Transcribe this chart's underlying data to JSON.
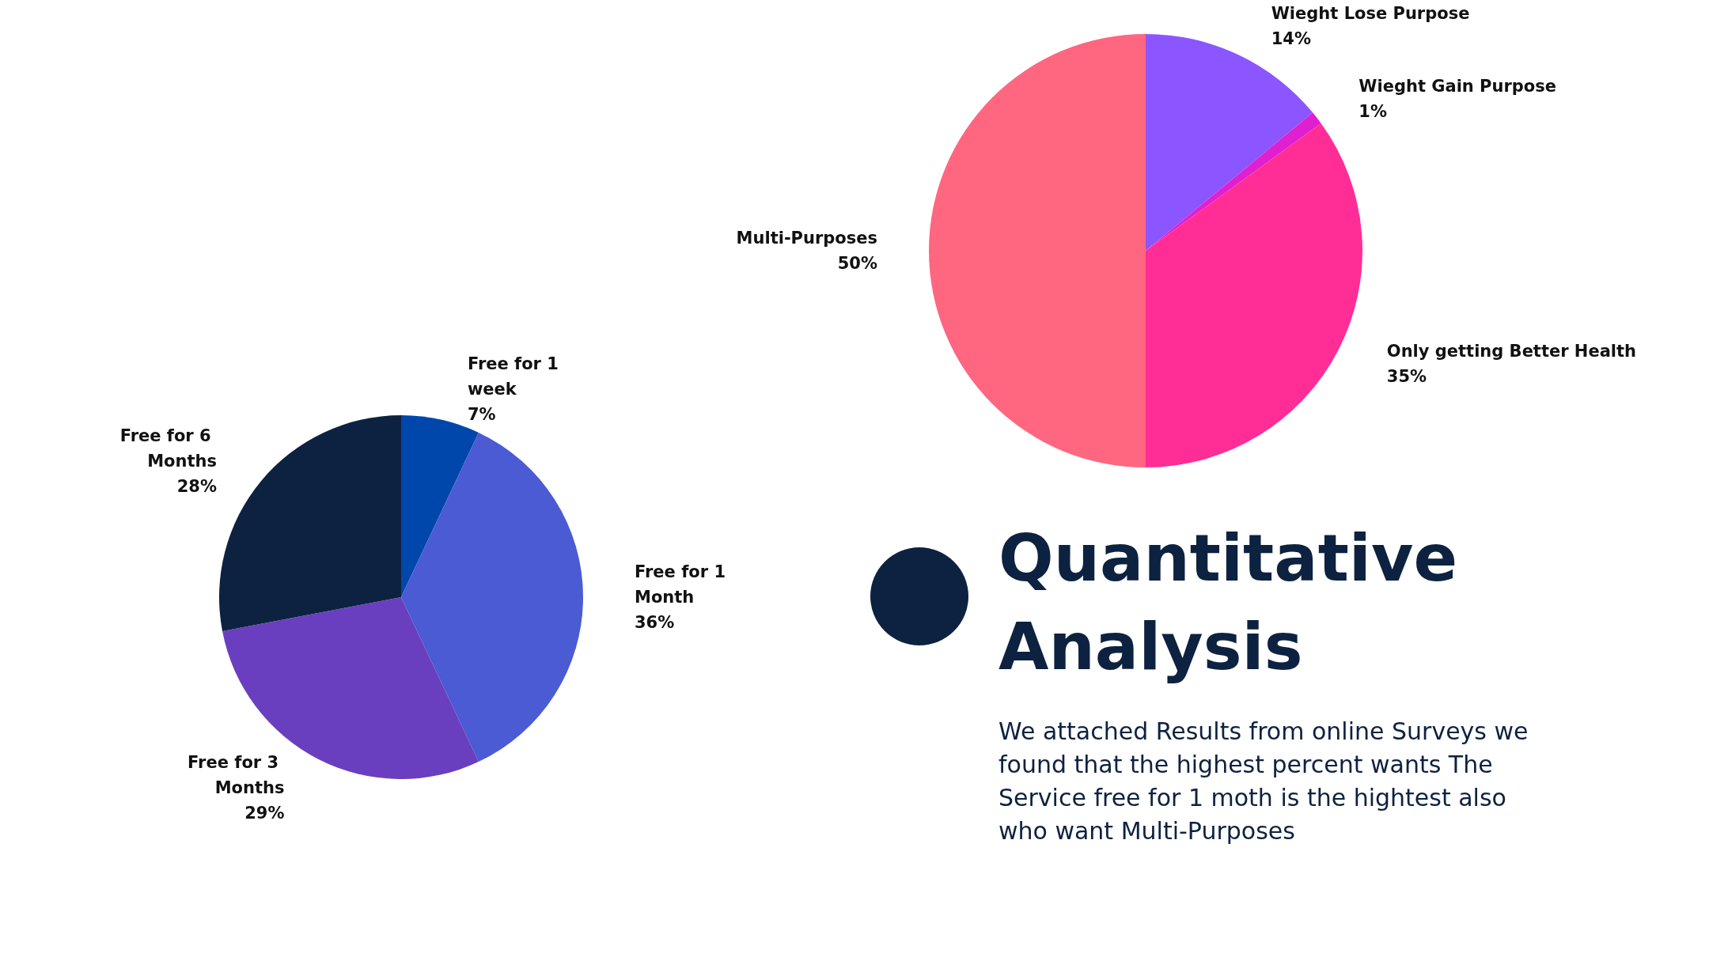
{
  "chart_data": [
    {
      "type": "pie",
      "categories": [
        "Wieght Lose Purpose",
        "Wieght Gain Purpose",
        "Only getting Better Health",
        "Multi-Purposes"
      ],
      "values": [
        14,
        1,
        35,
        50
      ],
      "value_labels": [
        "14%",
        "1%",
        "35%",
        "50%"
      ],
      "colors": [
        "#8b55ff",
        "#e020d0",
        "#ff2d95",
        "#ff6680"
      ],
      "legend": false
    },
    {
      "type": "pie",
      "categories": [
        "Free for 1 week",
        "Free for 1 Month",
        "Free for 3 Months",
        "Free for 6 Months"
      ],
      "values": [
        7,
        36,
        29,
        28
      ],
      "value_labels": [
        "7%",
        "36%",
        "29%",
        "28%"
      ],
      "colors": [
        "#0047ab",
        "#4a5bd4",
        "#6a3fbf",
        "#0d2240"
      ],
      "legend": false
    },
    {
      "type": "other",
      "title": "Quantitative Analysis",
      "annotations": [
        "We attached Results from online Surveys we found that the highest percent wants The Service free for 1 moth is the hightest also who want Multi-Purposes"
      ]
    }
  ]
}
